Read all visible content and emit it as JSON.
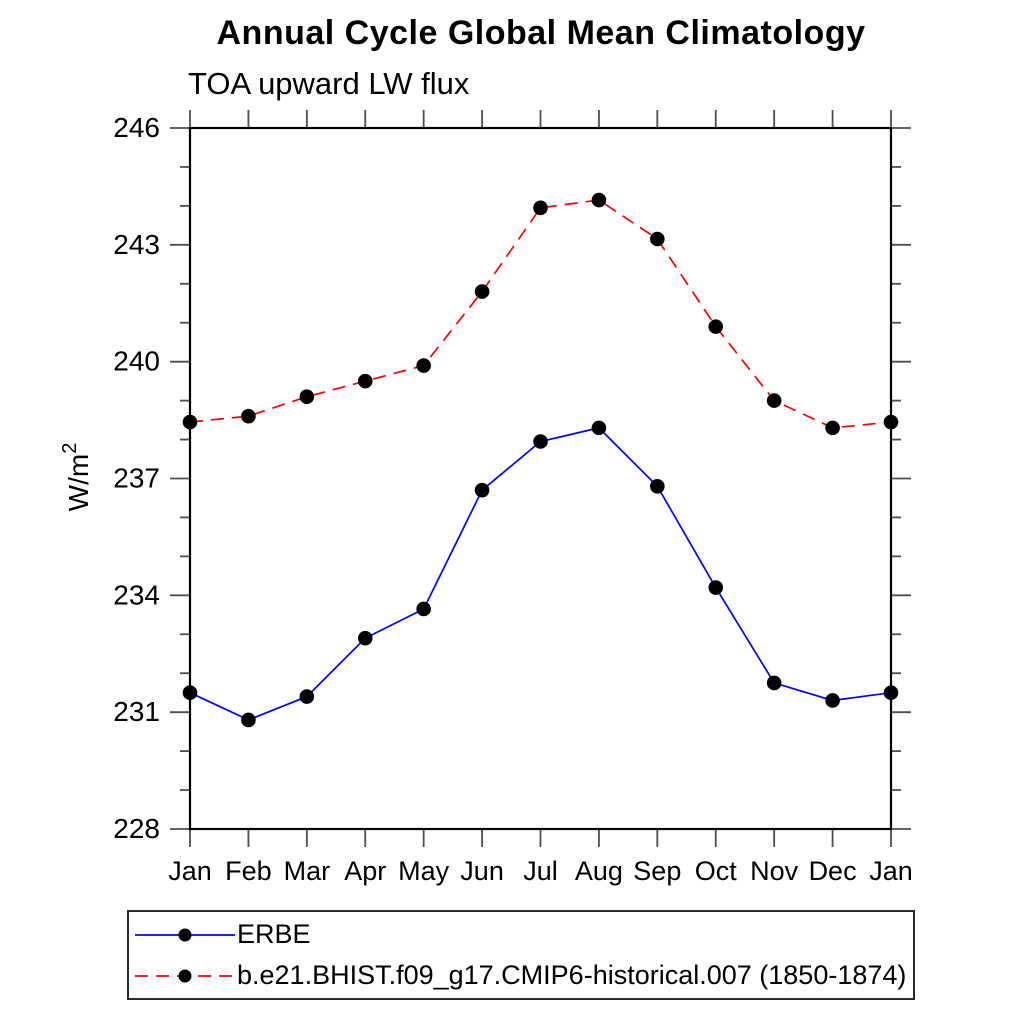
{
  "chart_data": {
    "type": "line",
    "title": "Annual Cycle Global Mean Climatology",
    "subtitle": "TOA upward LW flux",
    "ylabel": "W/m²",
    "ylabel_base": "W/m",
    "ylabel_exponent": "2",
    "ylim": [
      228,
      246
    ],
    "y_major_ticks": [
      228,
      231,
      234,
      237,
      240,
      243,
      246
    ],
    "y_minor_step": 1,
    "grid": false,
    "legend_position": "bottom-outside",
    "categories": [
      "Jan",
      "Feb",
      "Mar",
      "Apr",
      "May",
      "Jun",
      "Jul",
      "Aug",
      "Sep",
      "Oct",
      "Nov",
      "Dec",
      "Jan"
    ],
    "series": [
      {
        "name": "ERBE",
        "line_color": "#0000ff",
        "line_style": "solid",
        "marker": "filled-circle",
        "marker_color": "#000000",
        "values": [
          231.5,
          230.8,
          231.4,
          232.9,
          233.65,
          236.7,
          237.95,
          238.3,
          236.8,
          234.2,
          231.75,
          231.3,
          231.5
        ]
      },
      {
        "name": "b.e21.BHIST.f09_g17.CMIP6-historical.007 (1850-1874)",
        "line_color": "#ff0000",
        "line_style": "dashed",
        "marker": "filled-circle",
        "marker_color": "#000000",
        "values": [
          238.45,
          238.6,
          239.1,
          239.5,
          239.9,
          241.8,
          243.95,
          244.15,
          243.15,
          240.9,
          239.0,
          238.3,
          238.45
        ]
      }
    ],
    "axis_color": "#000000",
    "tick_color": "#4d4d4d"
  }
}
